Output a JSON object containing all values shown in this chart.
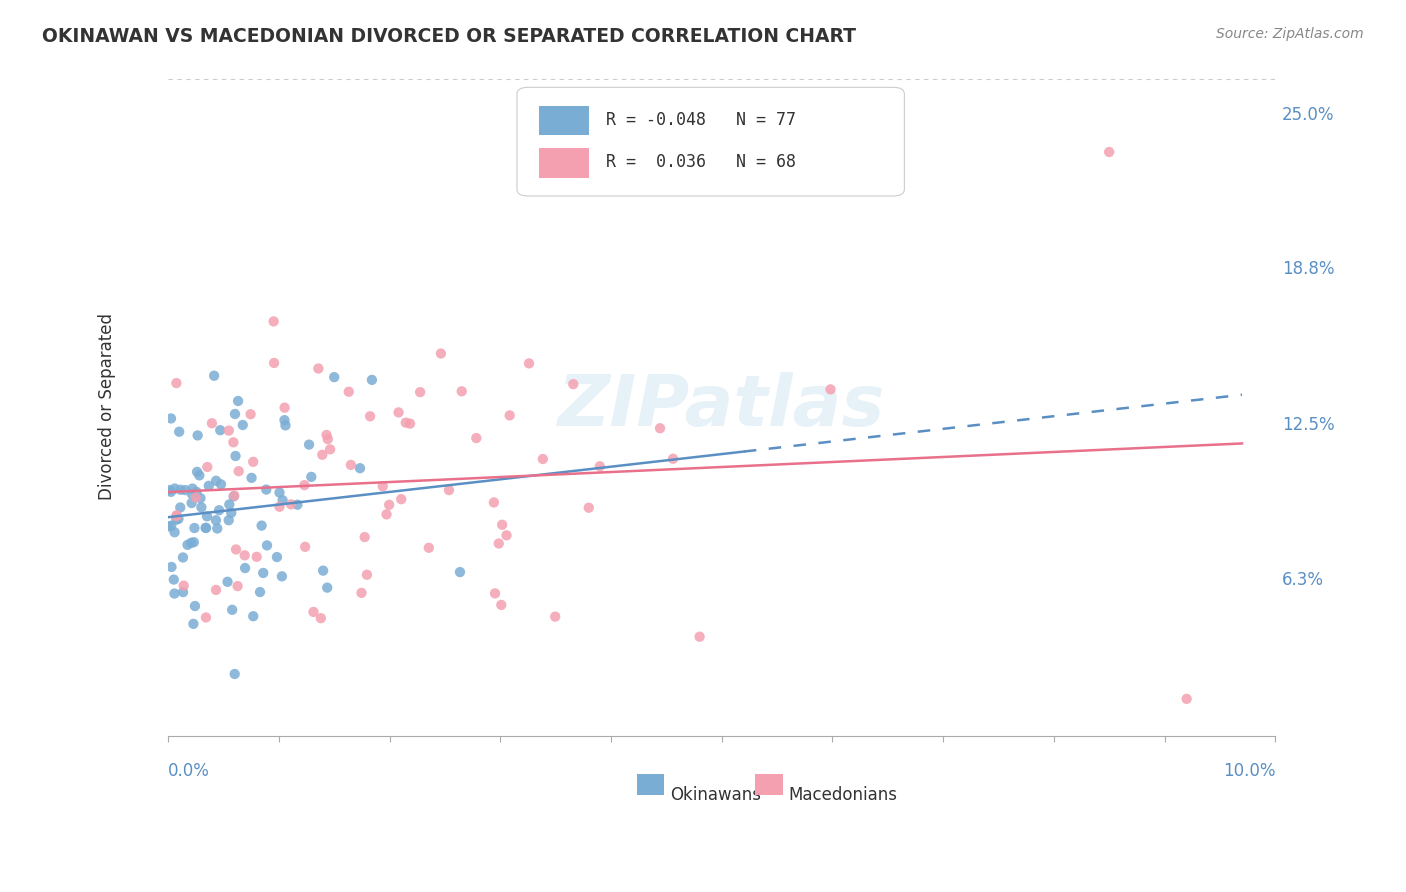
{
  "title": "OKINAWAN VS MACEDONIAN DIVORCED OR SEPARATED CORRELATION CHART",
  "source": "Source: ZipAtlas.com",
  "ylabel": "Divorced or Separated",
  "yticks": [
    "6.3%",
    "12.5%",
    "18.8%",
    "25.0%"
  ],
  "ytick_values": [
    0.063,
    0.125,
    0.188,
    0.25
  ],
  "xlim": [
    0.0,
    0.1
  ],
  "ylim": [
    0.0,
    0.265
  ],
  "legend_blue": "R = -0.048   N = 77",
  "legend_pink": "R =  0.036   N = 68",
  "okinawan_color": "#7aadd4",
  "macedonian_color": "#f4a0b0",
  "okinawan_line_color": "#5a8fc4",
  "macedonian_line_color": "#e8708a",
  "background_color": "#ffffff",
  "grid_color": "#cccccc"
}
